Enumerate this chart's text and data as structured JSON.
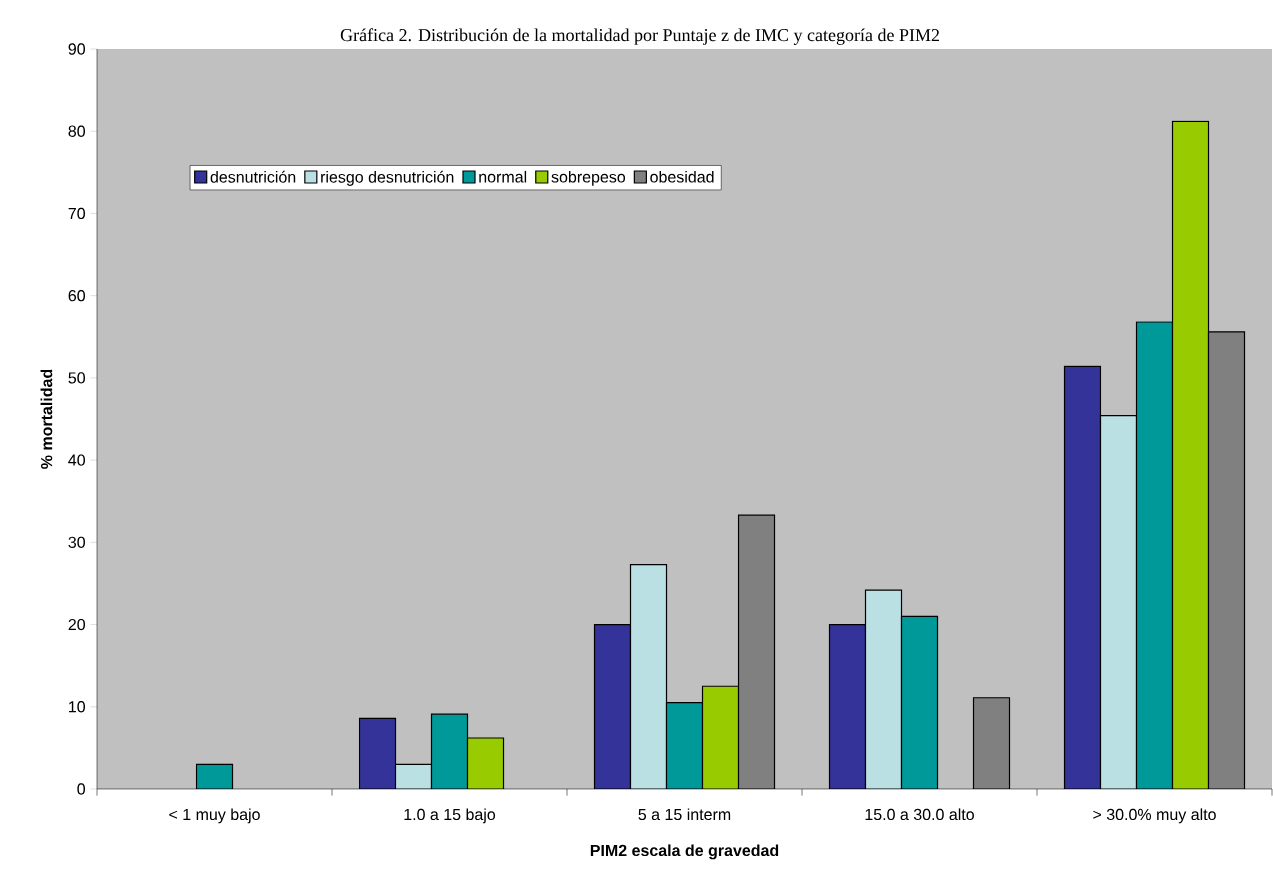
{
  "chart_data": {
    "type": "bar",
    "title": "Gráfica 2. Distribución de la mortalidad por Puntaje z de IMC y categoría de PIM2",
    "xlabel": "PIM2 escala de gravedad",
    "ylabel": "% mortalidad",
    "categories": [
      "< 1 muy bajo",
      "1.0 a 15 bajo",
      "5 a 15 interm",
      "15.0 a 30.0 alto",
      "> 30.0% muy alto"
    ],
    "series": [
      {
        "name": "desnutrición",
        "color": "#333399",
        "values": [
          null,
          8.6,
          20,
          20,
          51.4
        ]
      },
      {
        "name": "riesgo desnutrición",
        "color": "#bbe0e3",
        "values": [
          null,
          3,
          27.3,
          24.2,
          45.4
        ]
      },
      {
        "name": "normal",
        "color": "#009999",
        "values": [
          3,
          9.1,
          10.5,
          21,
          56.8
        ]
      },
      {
        "name": "sobrepeso",
        "color": "#99cc00",
        "values": [
          null,
          6.2,
          12.5,
          null,
          81.2
        ]
      },
      {
        "name": "obesidad",
        "color": "#808080",
        "values": [
          null,
          null,
          33.3,
          11.1,
          55.6
        ]
      }
    ],
    "ylim": [
      0,
      90
    ],
    "yticks": [
      0,
      10,
      20,
      30,
      40,
      50,
      60,
      70,
      80,
      90
    ],
    "grid": false,
    "legend": "top left"
  }
}
